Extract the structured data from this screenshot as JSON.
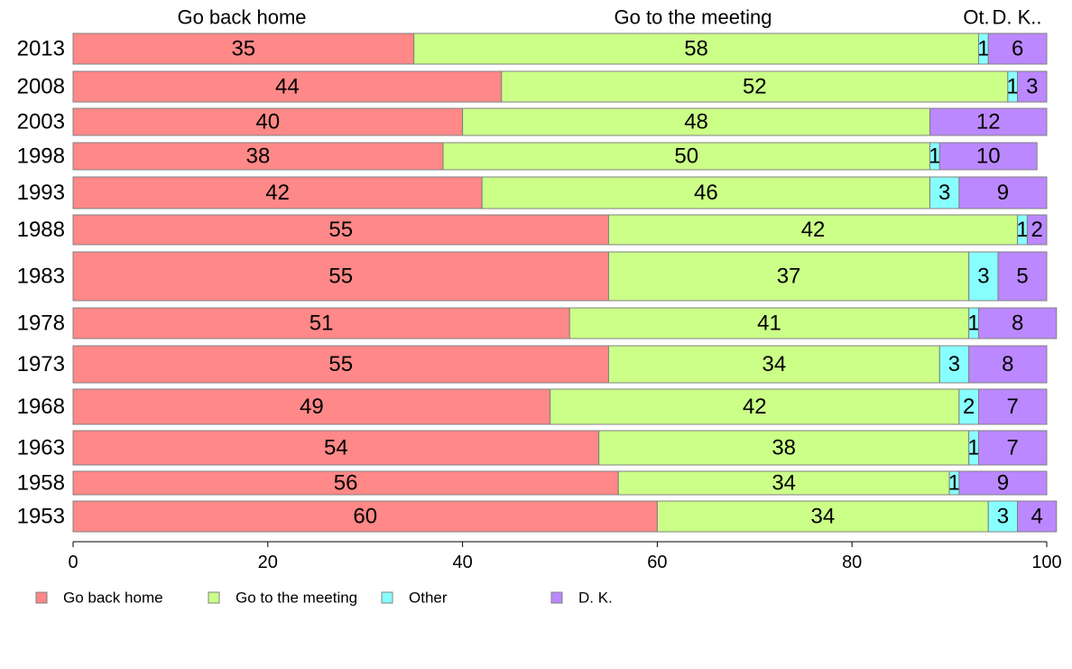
{
  "chart_data": {
    "type": "bar",
    "orientation": "horizontal",
    "stacked": true,
    "normalized_percent": true,
    "categories": [
      "2013",
      "2008",
      "2003",
      "1998",
      "1993",
      "1988",
      "1983",
      "1978",
      "1973",
      "1968",
      "1963",
      "1958",
      "1953"
    ],
    "category_axis_order": "top-to-bottom",
    "series": [
      {
        "name": "Go back home",
        "color": "#ff8888",
        "values": [
          35,
          44,
          40,
          38,
          42,
          55,
          55,
          51,
          55,
          49,
          54,
          56,
          60
        ]
      },
      {
        "name": "Go to the meeting",
        "color": "#ccff88",
        "values": [
          58,
          52,
          48,
          50,
          46,
          42,
          37,
          41,
          34,
          42,
          38,
          34,
          34
        ]
      },
      {
        "name": "Other",
        "color": "#88ffff",
        "values": [
          1,
          1,
          0,
          1,
          3,
          1,
          3,
          1,
          3,
          2,
          1,
          1,
          3
        ]
      },
      {
        "name": "D. K.",
        "color": "#bb88ff",
        "values": [
          6,
          3,
          12,
          10,
          9,
          2,
          5,
          8,
          8,
          7,
          7,
          9,
          4
        ]
      }
    ],
    "data_labels": {
      "Go back home": [
        "35",
        "44",
        "40",
        "38",
        "42",
        "55",
        "55",
        "51",
        "55",
        "49",
        "54",
        "56",
        "60"
      ],
      "Go to the meeting": [
        "58",
        "52",
        "48",
        "50",
        "46",
        "42",
        "37",
        "41",
        "34",
        "42",
        "38",
        "34",
        "34"
      ],
      "Other": [
        "1",
        "1",
        "",
        "1",
        "3",
        "1",
        "3",
        "1",
        "3",
        "2",
        "1",
        "1",
        "3"
      ],
      "D. K.": [
        "6",
        "3",
        "12",
        "10",
        "9",
        "2",
        "5",
        "8",
        "8",
        "7",
        "7",
        "9",
        "4"
      ]
    },
    "top_labels": [
      "Go back home",
      "Go to the meeting",
      "Ot.",
      "D. K.."
    ],
    "x_ticks": [
      "0",
      "20",
      "40",
      "60",
      "80",
      "100"
    ],
    "xlim": [
      0,
      100
    ],
    "grid": false,
    "legend_position": "bottom-left",
    "legend": [
      "Go back home",
      "Go to the meeting",
      "Other",
      "D. K."
    ]
  }
}
